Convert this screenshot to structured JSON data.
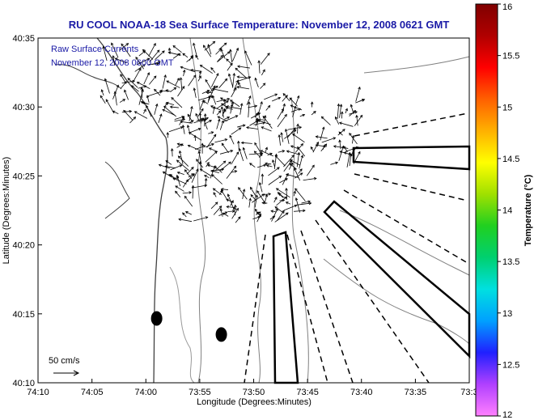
{
  "chart_data": {
    "type": "scatter",
    "title": "RU COOL  NOAA-18  Sea Surface Temperature:  November 12, 2008 0621 GMT",
    "xlabel": "Longitude (Degrees:Minutes)",
    "ylabel": "Latitude (Degrees:Minutes)",
    "x_ticks": [
      {
        "v": 74.1667,
        "label": "74:10"
      },
      {
        "v": 74.0833,
        "label": "74:05"
      },
      {
        "v": 74.0,
        "label": "74:00"
      },
      {
        "v": 73.9167,
        "label": "73:55"
      },
      {
        "v": 73.8333,
        "label": "73:50"
      },
      {
        "v": 73.75,
        "label": "73:45"
      },
      {
        "v": 73.6667,
        "label": "73:40"
      },
      {
        "v": 73.5833,
        "label": "73:35"
      },
      {
        "v": 73.5,
        "label": "73:3"
      }
    ],
    "y_ticks": [
      {
        "v": 40.1667,
        "label": "40:10"
      },
      {
        "v": 40.25,
        "label": "40:15"
      },
      {
        "v": 40.3333,
        "label": "40:20"
      },
      {
        "v": 40.4167,
        "label": "40:25"
      },
      {
        "v": 40.5,
        "label": "40:30"
      },
      {
        "v": 40.5833,
        "label": "40:35"
      }
    ],
    "xlim": [
      74.1667,
      73.5
    ],
    "ylim": [
      40.1667,
      40.5833
    ],
    "legend": {
      "line1": "Raw Surface Currents",
      "line2": "November 12, 2008 0600 GMT",
      "scale_label": "50 cm/s"
    },
    "colorbar": {
      "label": "Temperature (°C)",
      "min": 12,
      "max": 16,
      "ticks": [
        "12",
        "12.5",
        "13",
        "13.5",
        "14",
        "14.5",
        "15",
        "15.5",
        "16"
      ],
      "colors": [
        "#ff80ff",
        "#b040ff",
        "#2020ff",
        "#00a0ff",
        "#00e0e0",
        "#00d070",
        "#20d020",
        "#a0e000",
        "#ffff00",
        "#ffb000",
        "#ff6000",
        "#ff0000",
        "#b00000",
        "#800000"
      ]
    },
    "markers": [
      {
        "name": "buoy-marker-1",
        "lon": 73.9833,
        "lat": 40.2444
      },
      {
        "name": "buoy-marker-2",
        "lon": 73.8833,
        "lat": 40.225
      }
    ],
    "vector_regions": [
      {
        "lon": [
          74.0667,
          73.8167
        ],
        "lat": [
          40.48,
          40.57
        ],
        "n": 140
      },
      {
        "lon": [
          73.9667,
          73.6667
        ],
        "lat": [
          40.42,
          40.51
        ],
        "n": 160
      },
      {
        "lon": [
          73.9667,
          73.75
        ],
        "lat": [
          40.36,
          40.43
        ],
        "n": 110
      }
    ]
  }
}
